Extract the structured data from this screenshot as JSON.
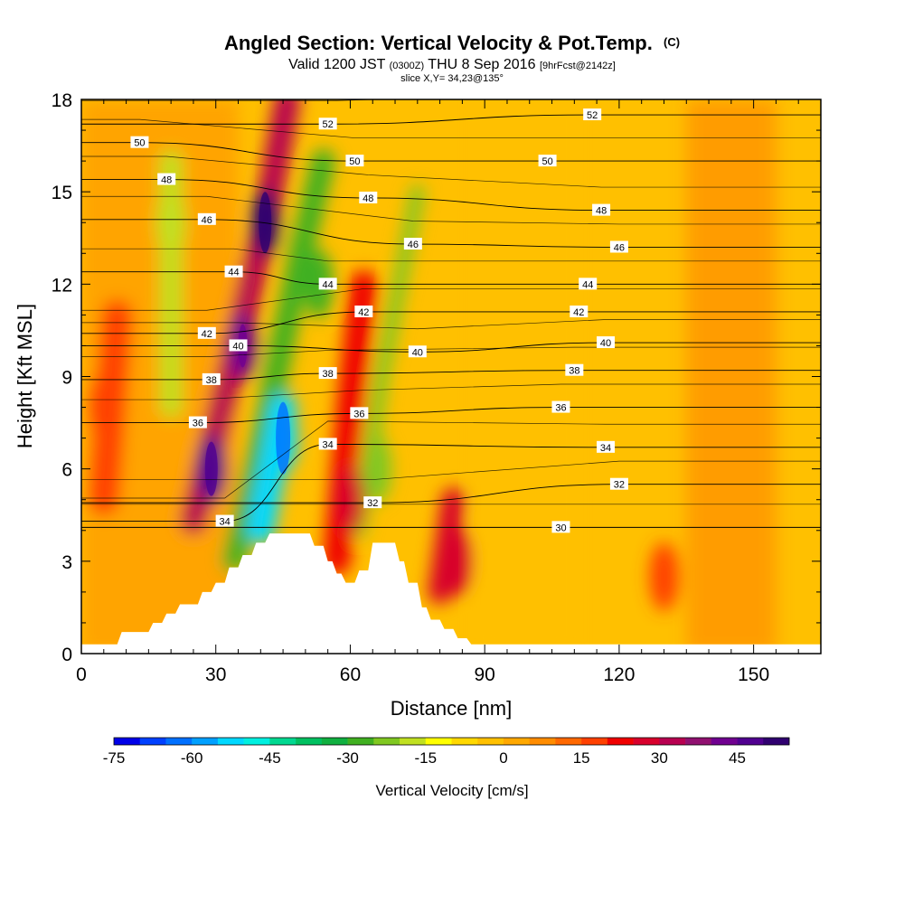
{
  "chart_data": {
    "type": "heatmap",
    "title_main": "Angled Section: Vertical Velocity & Pot.Temp.",
    "title_unit": "(C)",
    "subtitle_valid": "Valid 1200 JST",
    "subtitle_utc": "(0300Z)",
    "subtitle_date": "THU 8 Sep 2016",
    "subtitle_fcst": "[9hrFcst@2142z]",
    "subtitle_slice": "slice X,Y= 34,23@135°",
    "xlabel": "Distance [nm]",
    "ylabel": "Height [Kft MSL]",
    "xlim": [
      0,
      165
    ],
    "ylim": [
      0,
      18
    ],
    "xticks": [
      "0",
      "30",
      "60",
      "90",
      "120",
      "150"
    ],
    "yticks": [
      "0",
      "3",
      "6",
      "9",
      "12",
      "15",
      "18"
    ],
    "colorbar": {
      "label": "Vertical Velocity [cm/s]",
      "tick_labels": [
        "-75",
        "-60",
        "-45",
        "-30",
        "-15",
        "0",
        "15",
        "30",
        "45"
      ],
      "range": [
        -75,
        55
      ],
      "step": 5,
      "colors": [
        "#0000e8",
        "#0040ff",
        "#0070ff",
        "#00a0ff",
        "#00d8ff",
        "#00f0e0",
        "#00d890",
        "#00c060",
        "#10b040",
        "#40b020",
        "#80c820",
        "#c0e020",
        "#ffff00",
        "#ffd800",
        "#ffc000",
        "#ffa800",
        "#ff8c00",
        "#ff6800",
        "#ff4000",
        "#f00000",
        "#d8002c",
        "#b80050",
        "#901070",
        "#700090",
        "#500090",
        "#300070"
      ]
    },
    "features": [
      {
        "name": "downdraft core",
        "x": 45,
        "z": 7,
        "value": -55
      },
      {
        "name": "updraft core upper",
        "x": 41,
        "z": 14,
        "value": 50
      },
      {
        "name": "updraft core lower",
        "x": 29,
        "z": 6,
        "value": 45
      },
      {
        "name": "updraft",
        "x": 36,
        "z": 10,
        "value": 40
      },
      {
        "name": "downdraft band",
        "x": 20,
        "z": 14,
        "value": -20
      },
      {
        "name": "downdraft upper",
        "x": 53,
        "z": 12,
        "value": -28
      },
      {
        "name": "downdraft lee",
        "x": 66,
        "z": 6,
        "value": -25
      },
      {
        "name": "updraft lee",
        "x": 60,
        "z": 5,
        "value": 25
      },
      {
        "name": "updraft lee lower",
        "x": 84,
        "z": 3,
        "value": 28
      },
      {
        "name": "left updraft",
        "x": 5,
        "z": 8,
        "value": 18
      },
      {
        "name": "surface weak up",
        "x": 130,
        "z": 2.5,
        "value": 15
      }
    ],
    "terrain_kft": [
      [
        0,
        0.3
      ],
      [
        8,
        0.3
      ],
      [
        9,
        0.7
      ],
      [
        15,
        0.7
      ],
      [
        16,
        1.0
      ],
      [
        18,
        1.0
      ],
      [
        19,
        1.3
      ],
      [
        21,
        1.3
      ],
      [
        22,
        1.6
      ],
      [
        26,
        1.6
      ],
      [
        27,
        2.0
      ],
      [
        29,
        2.0
      ],
      [
        30,
        2.3
      ],
      [
        32,
        2.3
      ],
      [
        33,
        2.8
      ],
      [
        35,
        2.8
      ],
      [
        36,
        3.2
      ],
      [
        38,
        3.2
      ],
      [
        39,
        3.6
      ],
      [
        41,
        3.6
      ],
      [
        42,
        3.9
      ],
      [
        51,
        3.9
      ],
      [
        52,
        3.5
      ],
      [
        54,
        3.5
      ],
      [
        55,
        3.0
      ],
      [
        56,
        3.0
      ],
      [
        57,
        2.6
      ],
      [
        58,
        2.6
      ],
      [
        59,
        2.3
      ],
      [
        61,
        2.3
      ],
      [
        62,
        2.7
      ],
      [
        64,
        2.7
      ],
      [
        65,
        3.6
      ],
      [
        70,
        3.6
      ],
      [
        71,
        3.0
      ],
      [
        72,
        3.0
      ],
      [
        73,
        2.3
      ],
      [
        75,
        2.3
      ],
      [
        76,
        1.5
      ],
      [
        77,
        1.5
      ],
      [
        78,
        1.1
      ],
      [
        80,
        1.1
      ],
      [
        81,
        0.8
      ],
      [
        83,
        0.8
      ],
      [
        84,
        0.5
      ],
      [
        86,
        0.5
      ],
      [
        87,
        0.3
      ],
      [
        165,
        0.3
      ]
    ],
    "theta_contours": [
      {
        "value": 30,
        "labels": [
          {
            "x": 107,
            "z": 4.1
          }
        ]
      },
      {
        "value": 32,
        "labels": [
          {
            "x": 65,
            "z": 4.9
          },
          {
            "x": 120,
            "z": 5.5
          }
        ]
      },
      {
        "value": 34,
        "labels": [
          {
            "x": 32,
            "z": 4.3
          },
          {
            "x": 55,
            "z": 6.8
          },
          {
            "x": 117,
            "z": 6.7
          }
        ]
      },
      {
        "value": 36,
        "labels": [
          {
            "x": 26,
            "z": 7.5
          },
          {
            "x": 62,
            "z": 7.8
          },
          {
            "x": 107,
            "z": 8.0
          }
        ]
      },
      {
        "value": 38,
        "labels": [
          {
            "x": 29,
            "z": 8.9
          },
          {
            "x": 55,
            "z": 9.1
          },
          {
            "x": 110,
            "z": 9.2
          }
        ]
      },
      {
        "value": 40,
        "labels": [
          {
            "x": 35,
            "z": 10.0
          },
          {
            "x": 75,
            "z": 9.8
          },
          {
            "x": 117,
            "z": 10.1
          }
        ]
      },
      {
        "value": 42,
        "labels": [
          {
            "x": 28,
            "z": 10.4
          },
          {
            "x": 63,
            "z": 11.1
          },
          {
            "x": 111,
            "z": 11.1
          }
        ]
      },
      {
        "value": 44,
        "labels": [
          {
            "x": 34,
            "z": 12.4
          },
          {
            "x": 55,
            "z": 12.0
          },
          {
            "x": 113,
            "z": 12.0
          }
        ]
      },
      {
        "value": 46,
        "labels": [
          {
            "x": 28,
            "z": 14.1
          },
          {
            "x": 74,
            "z": 13.3
          },
          {
            "x": 120,
            "z": 13.2
          }
        ]
      },
      {
        "value": 48,
        "labels": [
          {
            "x": 19,
            "z": 15.4
          },
          {
            "x": 64,
            "z": 14.8
          },
          {
            "x": 116,
            "z": 14.4
          }
        ]
      },
      {
        "value": 50,
        "labels": [
          {
            "x": 13,
            "z": 16.6
          },
          {
            "x": 61,
            "z": 16.0
          },
          {
            "x": 104,
            "z": 16.0
          }
        ]
      },
      {
        "value": 52,
        "labels": [
          {
            "x": 55,
            "z": 17.2
          },
          {
            "x": 114,
            "z": 17.5
          }
        ]
      }
    ]
  }
}
